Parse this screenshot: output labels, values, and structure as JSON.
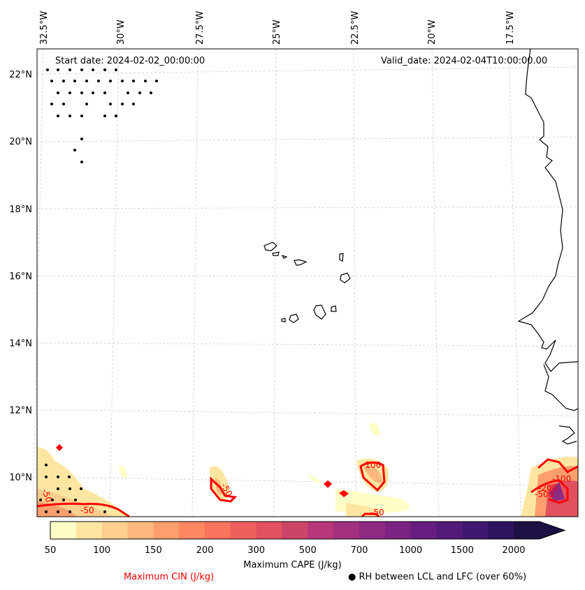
{
  "title_left": "Start date: 2024-02-02_00:00:00",
  "title_right": "Valid_date: 2024-02-04T10:00:00.00",
  "lon_labels": [
    "32.5°W",
    "30°W",
    "27.5°W",
    "25°W",
    "22.5°W",
    "20°W",
    "17.5°W"
  ],
  "lat_labels": [
    "22°N",
    "20°N",
    "18°N",
    "16°N",
    "14°N",
    "12°N",
    "10°N"
  ],
  "colorbar": {
    "label": "Maximum CAPE (J/kg)",
    "ticks": [
      "50",
      "100",
      "150",
      "200",
      "300",
      "500",
      "700",
      "1000",
      "1500",
      "2000"
    ],
    "colors": [
      "#fffec6",
      "#fee6a2",
      "#fecf8e",
      "#feb77c",
      "#fd9f6c",
      "#fc8761",
      "#f8745c",
      "#ee605e",
      "#e1515f",
      "#cc4468",
      "#b73779",
      "#a3307e",
      "#8e2a81",
      "#7b2382",
      "#661d7f",
      "#531a7a",
      "#3f1871",
      "#2e1360",
      "#1d1144"
    ]
  },
  "cin_label": "Maximum CIN (J/kg)",
  "cin_color": "#ff0000",
  "rh_label": "RH between LCL and LFC (over 60%)",
  "contour_labels": [
    "-50",
    "-100",
    "-50",
    "-50",
    "-50",
    "-100",
    "-200",
    "-500"
  ]
}
